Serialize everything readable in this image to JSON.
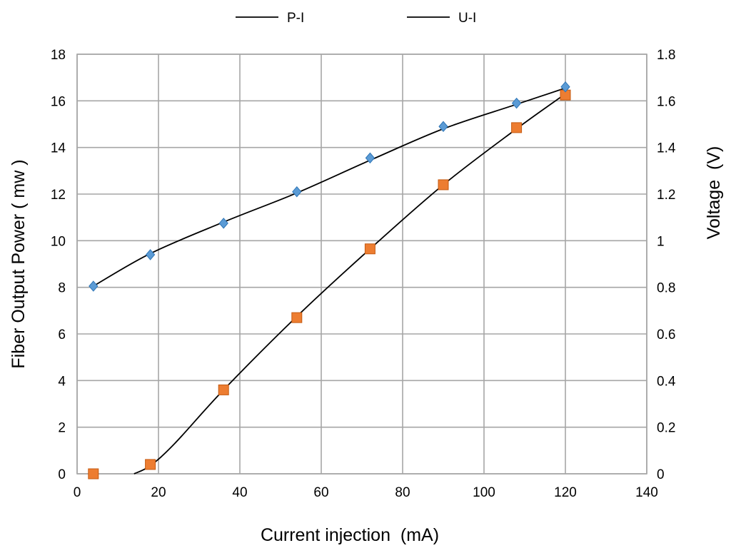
{
  "chart_data": {
    "type": "scatter",
    "title": "",
    "xlabel": "Current injection  (mA)",
    "ylabel": "Fiber Output Power ( mw )",
    "y2label": "Voltage  (V)",
    "xlim": [
      0,
      140
    ],
    "ylim": [
      0,
      18
    ],
    "y2lim": [
      0,
      1.8
    ],
    "x_ticks": [
      "0",
      "20",
      "40",
      "60",
      "80",
      "100",
      "120",
      "140"
    ],
    "y_ticks": [
      "0",
      "2",
      "4",
      "6",
      "8",
      "10",
      "12",
      "14",
      "16",
      "18"
    ],
    "y2_ticks": [
      "0",
      "0.2",
      "0.4",
      "0.6",
      "0.8",
      "1",
      "1.2",
      "1.4",
      "1.6",
      "1.8"
    ],
    "grid": true,
    "legend_position": "top-center",
    "series": [
      {
        "name": "P-I",
        "axis": "left",
        "marker": "square",
        "marker_color": "#ed7d31",
        "line_color": "#000000",
        "x": [
          4,
          18,
          36,
          54,
          72,
          90,
          108,
          120
        ],
        "y": [
          0,
          0.4,
          3.6,
          6.7,
          9.65,
          12.4,
          14.85,
          16.25
        ],
        "fit_line": [
          [
            14,
            0
          ],
          [
            18,
            0.35
          ],
          [
            24,
            1.3
          ],
          [
            36,
            3.6
          ],
          [
            54,
            6.75
          ],
          [
            72,
            9.65
          ],
          [
            90,
            12.4
          ],
          [
            108,
            14.8
          ],
          [
            120,
            16.3
          ]
        ]
      },
      {
        "name": "U-I",
        "axis": "right",
        "marker": "diamond",
        "marker_color": "#5b9bd5",
        "line_color": "#000000",
        "x": [
          4,
          18,
          36,
          54,
          72,
          90,
          108,
          120
        ],
        "y": [
          0.805,
          0.94,
          1.075,
          1.21,
          1.355,
          1.49,
          1.59,
          1.66
        ],
        "fit_line": [
          [
            4,
            0.805
          ],
          [
            18,
            0.945
          ],
          [
            36,
            1.08
          ],
          [
            54,
            1.205
          ],
          [
            72,
            1.345
          ],
          [
            90,
            1.48
          ],
          [
            108,
            1.585
          ],
          [
            120,
            1.655
          ]
        ]
      }
    ]
  }
}
